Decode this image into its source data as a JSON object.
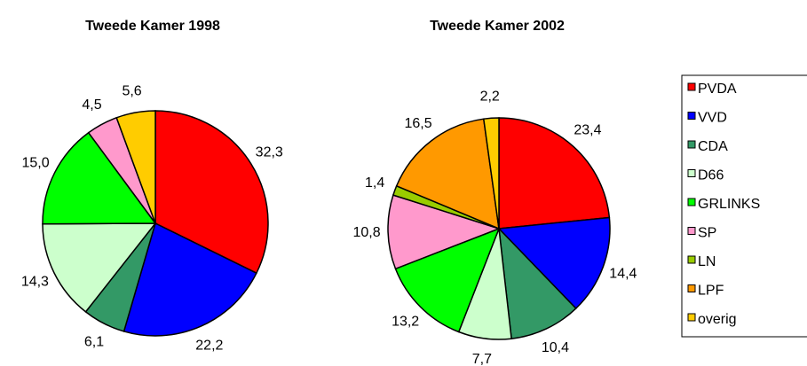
{
  "chart_data": [
    {
      "type": "pie",
      "title": "Tweede Kamer 1998",
      "categories": [
        "PVDA",
        "VVD",
        "CDA",
        "D66",
        "GRLINKS",
        "SP",
        "overig"
      ],
      "values": [
        32.3,
        22.2,
        6.1,
        14.3,
        15.0,
        4.5,
        5.6
      ],
      "value_labels": [
        "32,3",
        "22,2",
        "6,1",
        "14,3",
        "15,0",
        "4,5",
        "5,6"
      ],
      "colors": [
        "#ff0000",
        "#0000ff",
        "#339966",
        "#ccffcc",
        "#00ff00",
        "#ff99cc",
        "#ffcc00"
      ]
    },
    {
      "type": "pie",
      "title": "Tweede Kamer 2002",
      "categories": [
        "PVDA",
        "VVD",
        "CDA",
        "D66",
        "GRLINKS",
        "SP",
        "LN",
        "LPF",
        "overig"
      ],
      "values": [
        23.4,
        14.4,
        10.4,
        7.7,
        13.2,
        10.8,
        1.4,
        16.5,
        2.2
      ],
      "value_labels": [
        "23,4",
        "14,4",
        "10,4",
        "7,7",
        "13,2",
        "10,8",
        "1,4",
        "16,5",
        "2,2"
      ],
      "colors": [
        "#ff0000",
        "#0000ff",
        "#339966",
        "#ccffcc",
        "#00ff00",
        "#ff99cc",
        "#99cc00",
        "#ff9900",
        "#ffcc00"
      ],
      "legend": "right"
    }
  ]
}
